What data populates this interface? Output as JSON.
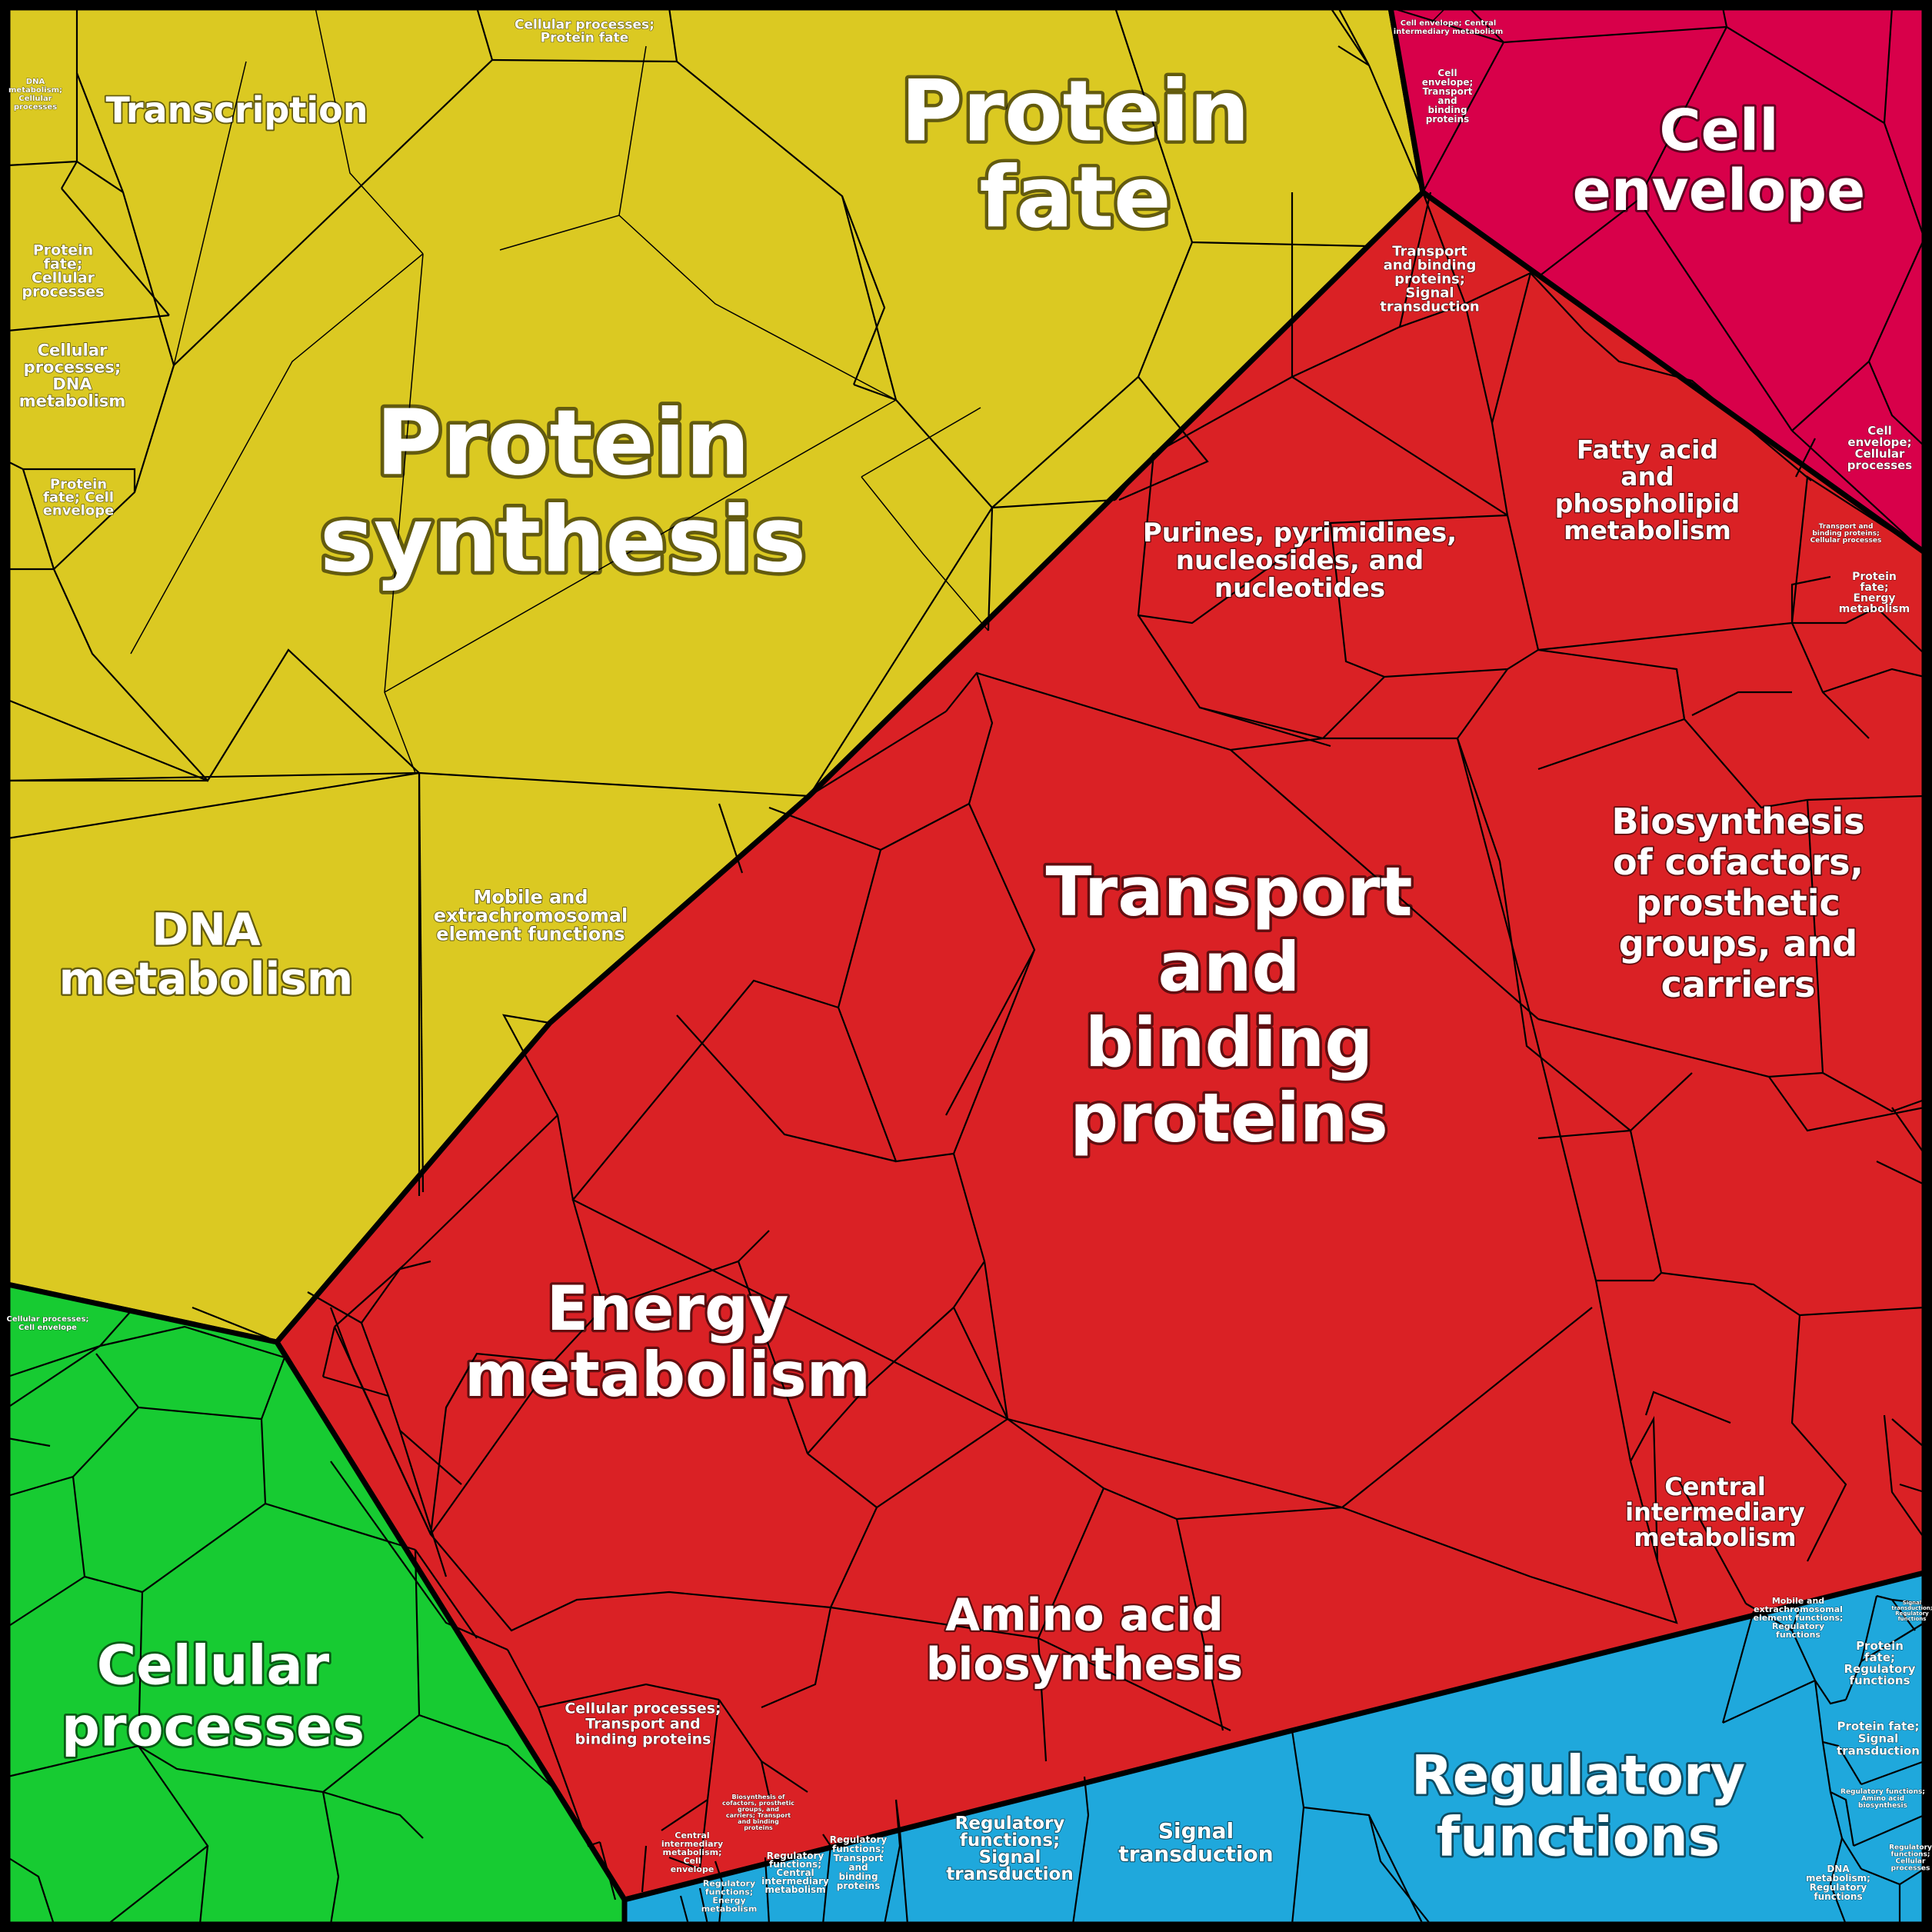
{
  "colors": {
    "yellow": "#dbc922",
    "red": "#da2125",
    "magenta": "#d8004a",
    "green": "#17cb32",
    "blue": "#1fa8dc",
    "border": "#000000"
  },
  "labels": {
    "protein_synthesis": [
      "Protein",
      "synthesis"
    ],
    "protein_fate": [
      "Protein",
      "fate"
    ],
    "transcription": [
      "Transcription"
    ],
    "dna_metabolism": [
      "DNA",
      "metabolism"
    ],
    "mobile_elements": [
      "Mobile and",
      "extrachromosomal",
      "element functions"
    ],
    "cellular_processes_protein_fate": [
      "Cellular processes;",
      "Protein fate"
    ],
    "protein_fate_cellular_processes": [
      "Protein",
      "fate;",
      "Cellular",
      "processes"
    ],
    "cellular_processes_dna_metabolism": [
      "Cellular",
      "processes;",
      "DNA",
      "metabolism"
    ],
    "protein_fate_cell_envelope": [
      "Protein",
      "fate; Cell",
      "envelope"
    ],
    "dna_metabolism_cellular_processes": [
      "DNA",
      "metabolism;",
      "Cellular",
      "processes"
    ],
    "cell_envelope": [
      "Cell",
      "envelope"
    ],
    "cell_envelope_central": [
      "Cell envelope; Central",
      "intermediary metabolism"
    ],
    "cell_envelope_transport": [
      "Cell",
      "envelope;",
      "Transport",
      "and",
      "binding",
      "proteins"
    ],
    "cell_envelope_cellular_processes": [
      "Cell",
      "envelope;",
      "Cellular",
      "processes"
    ],
    "transport_signal": [
      "Transport",
      "and binding",
      "proteins;",
      "Signal",
      "transduction"
    ],
    "fatty_acid": [
      "Fatty acid",
      "and",
      "phospholipid",
      "metabolism"
    ],
    "purines": [
      "Purines, pyrimidines,",
      "nucleosides, and",
      "nucleotides"
    ],
    "transport_binding": [
      "Transport",
      "and",
      "binding",
      "proteins"
    ],
    "biosynthesis_cofactors": [
      "Biosynthesis",
      "of cofactors,",
      "prosthetic",
      "groups, and",
      "carriers"
    ],
    "transport_cellular_small": [
      "Transport and",
      "binding proteins;",
      "Cellular processes"
    ],
    "protein_fate_energy": [
      "Protein",
      "fate;",
      "Energy",
      "metabolism"
    ],
    "energy_metabolism": [
      "Energy",
      "metabolism"
    ],
    "central_intermediary": [
      "Central",
      "intermediary",
      "metabolism"
    ],
    "amino_acid": [
      "Amino acid",
      "biosynthesis"
    ],
    "cellular_transport": [
      "Cellular processes;",
      "Transport and",
      "binding proteins"
    ],
    "central_cell_envelope": [
      "Central",
      "intermediary",
      "metabolism;",
      "Cell",
      "envelope"
    ],
    "biosynthesis_cellular": [
      "Biosynthesis of",
      "cofactors, prosthetic",
      "groups, and",
      "carriers; Transport",
      "and binding",
      "proteins"
    ],
    "cellular_processes": [
      "Cellular",
      "processes"
    ],
    "cellular_cell_envelope": [
      "Cellular processes;",
      "Cell envelope"
    ],
    "regulatory_functions": [
      "Regulatory",
      "functions"
    ],
    "signal_transduction": [
      "Signal",
      "transduction"
    ],
    "regulatory_signal": [
      "Regulatory",
      "functions;",
      "Signal",
      "transduction"
    ],
    "regulatory_transport": [
      "Regulatory",
      "functions;",
      "Transport",
      "and",
      "binding",
      "proteins"
    ],
    "regulatory_central": [
      "Regulatory",
      "functions;",
      "Central",
      "intermediary",
      "metabolism"
    ],
    "regulatory_energy": [
      "Regulatory",
      "functions;",
      "Energy",
      "metabolism"
    ],
    "mobile_regulatory": [
      "Mobile and",
      "extrachromosomal",
      "element functions;",
      "Regulatory",
      "functions"
    ],
    "protein_fate_regulatory": [
      "Protein",
      "fate;",
      "Regulatory",
      "functions"
    ],
    "protein_fate_signal": [
      "Protein fate;",
      "Signal",
      "transduction"
    ],
    "dna_regulatory": [
      "DNA",
      "metabolism;",
      "Regulatory",
      "functions"
    ],
    "signal_regulatory": [
      "Signal",
      "transduction;",
      "Regulatory",
      "functions"
    ],
    "regulatory_amino": [
      "Regulatory functions;",
      "Amino acid",
      "biosynthesis"
    ],
    "regulatory_cellular": [
      "Regulatory",
      "functions;",
      "Cellular",
      "processes"
    ]
  }
}
